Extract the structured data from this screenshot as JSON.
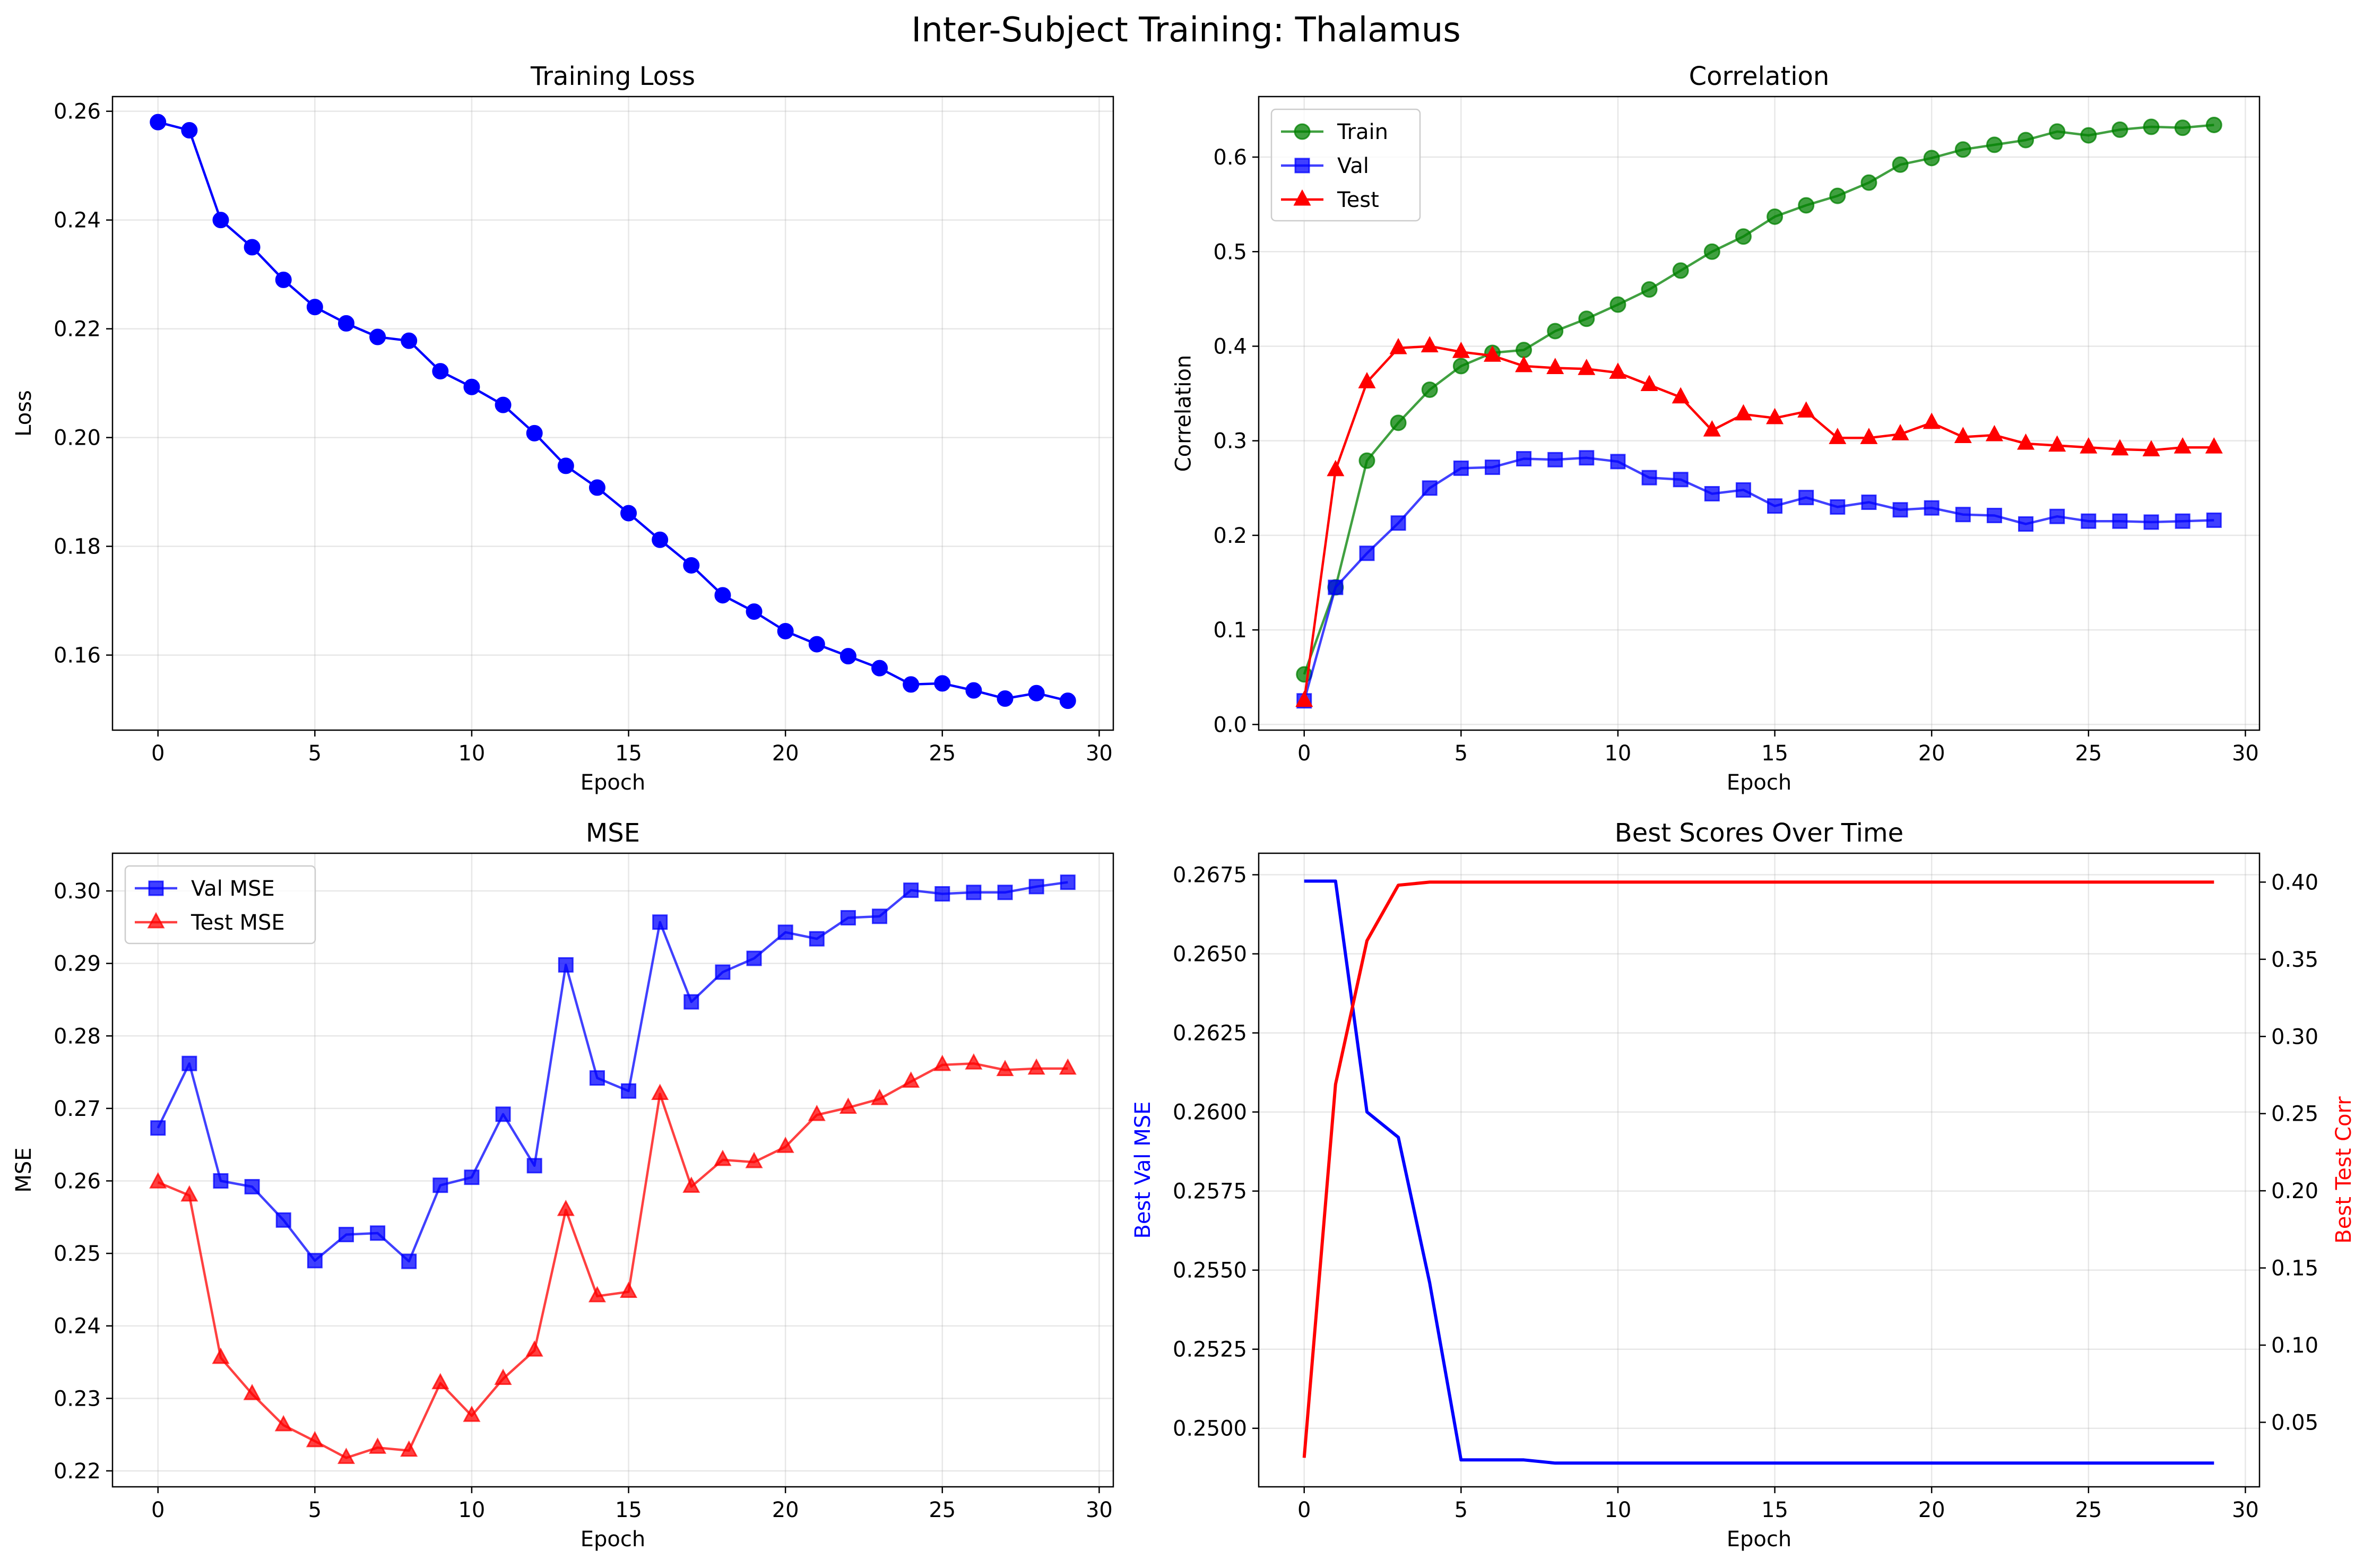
{
  "figure": {
    "suptitle": "Inter-Subject Training: Thalamus"
  },
  "chart_data": [
    {
      "id": "loss",
      "type": "line",
      "title": "Training Loss",
      "xlabel": "Epoch",
      "ylabel": "Loss",
      "xlim": [
        -1.45,
        30.45
      ],
      "ylim": [
        0.1462,
        0.2627
      ],
      "xticks": [
        0,
        5,
        10,
        15,
        20,
        25,
        30
      ],
      "yticks": [
        0.16,
        0.18,
        0.2,
        0.22,
        0.24,
        0.26
      ],
      "ytick_labels": [
        "0.16",
        "0.18",
        "0.20",
        "0.22",
        "0.24",
        "0.26"
      ],
      "grid": true,
      "x": [
        0,
        1,
        2,
        3,
        4,
        5,
        6,
        7,
        8,
        9,
        10,
        11,
        12,
        13,
        14,
        15,
        16,
        17,
        18,
        19,
        20,
        21,
        22,
        23,
        24,
        25,
        26,
        27,
        28,
        29
      ],
      "series": [
        {
          "name": "",
          "color": "#0000ff",
          "marker": "circle",
          "alpha": 1.0,
          "values": [
            0.258,
            0.2565,
            0.24,
            0.235,
            0.229,
            0.224,
            0.221,
            0.2185,
            0.2178,
            0.2122,
            0.2093,
            0.206,
            0.2008,
            0.1948,
            0.1908,
            0.1861,
            0.1812,
            0.1765,
            0.171,
            0.168,
            0.1644,
            0.162,
            0.1598,
            0.1576,
            0.1546,
            0.1548,
            0.1535,
            0.152,
            0.153,
            0.1516
          ]
        }
      ],
      "legend": null
    },
    {
      "id": "corr",
      "type": "line",
      "title": "Correlation",
      "xlabel": "Epoch",
      "ylabel": "Correlation",
      "xlim": [
        -1.45,
        30.45
      ],
      "ylim": [
        -0.006,
        0.664
      ],
      "xticks": [
        0,
        5,
        10,
        15,
        20,
        25,
        30
      ],
      "yticks": [
        0.0,
        0.1,
        0.2,
        0.3,
        0.4,
        0.5,
        0.6
      ],
      "ytick_labels": [
        "0.0",
        "0.1",
        "0.2",
        "0.3",
        "0.4",
        "0.5",
        "0.6"
      ],
      "grid": true,
      "x": [
        0,
        1,
        2,
        3,
        4,
        5,
        6,
        7,
        8,
        9,
        10,
        11,
        12,
        13,
        14,
        15,
        16,
        17,
        18,
        19,
        20,
        21,
        22,
        23,
        24,
        25,
        26,
        27,
        28,
        29
      ],
      "legend": "top-left",
      "series": [
        {
          "name": "Train",
          "color": "#008000",
          "marker": "circle",
          "alpha": 0.75,
          "values": [
            0.053,
            0.145,
            0.279,
            0.319,
            0.354,
            0.379,
            0.393,
            0.396,
            0.416,
            0.429,
            0.444,
            0.46,
            0.48,
            0.5,
            0.516,
            0.537,
            0.549,
            0.559,
            0.573,
            0.592,
            0.599,
            0.608,
            0.613,
            0.618,
            0.627,
            0.623,
            0.629,
            0.632,
            0.631,
            0.634
          ]
        },
        {
          "name": "Val",
          "color": "#0000ff",
          "marker": "square",
          "alpha": 0.75,
          "values": [
            0.025,
            0.145,
            0.181,
            0.213,
            0.25,
            0.271,
            0.272,
            0.281,
            0.28,
            0.282,
            0.278,
            0.261,
            0.259,
            0.244,
            0.248,
            0.231,
            0.24,
            0.23,
            0.235,
            0.227,
            0.229,
            0.222,
            0.221,
            0.212,
            0.22,
            0.215,
            0.215,
            0.214,
            0.215,
            0.216
          ]
        },
        {
          "name": "Test",
          "color": "#ff0000",
          "marker": "triangle",
          "alpha": 1.0,
          "values": [
            0.025,
            0.269,
            0.362,
            0.398,
            0.4,
            0.394,
            0.39,
            0.379,
            0.377,
            0.376,
            0.372,
            0.359,
            0.346,
            0.311,
            0.328,
            0.324,
            0.331,
            0.303,
            0.303,
            0.307,
            0.319,
            0.304,
            0.306,
            0.297,
            0.295,
            0.293,
            0.291,
            0.29,
            0.293,
            0.293
          ]
        }
      ]
    },
    {
      "id": "mse",
      "type": "line",
      "title": "MSE",
      "xlabel": "Epoch",
      "ylabel": "MSE",
      "xlim": [
        -1.45,
        30.45
      ],
      "ylim": [
        0.2178,
        0.3052
      ],
      "xticks": [
        0,
        5,
        10,
        15,
        20,
        25,
        30
      ],
      "yticks": [
        0.22,
        0.23,
        0.24,
        0.25,
        0.26,
        0.27,
        0.28,
        0.29,
        0.3
      ],
      "ytick_labels": [
        "0.22",
        "0.23",
        "0.24",
        "0.25",
        "0.26",
        "0.27",
        "0.28",
        "0.29",
        "0.30"
      ],
      "grid": true,
      "x": [
        0,
        1,
        2,
        3,
        4,
        5,
        6,
        7,
        8,
        9,
        10,
        11,
        12,
        13,
        14,
        15,
        16,
        17,
        18,
        19,
        20,
        21,
        22,
        23,
        24,
        25,
        26,
        27,
        28,
        29
      ],
      "legend": "top-left",
      "series": [
        {
          "name": "Val MSE",
          "color": "#0000ff",
          "marker": "square",
          "alpha": 0.75,
          "values": [
            0.2673,
            0.2762,
            0.26,
            0.2592,
            0.2546,
            0.249,
            0.2526,
            0.2528,
            0.2489,
            0.2594,
            0.2605,
            0.2692,
            0.2621,
            0.2898,
            0.2742,
            0.2724,
            0.2957,
            0.2847,
            0.2888,
            0.2907,
            0.2943,
            0.2934,
            0.2963,
            0.2965,
            0.3001,
            0.2996,
            0.2998,
            0.2998,
            0.3006,
            0.3012
          ]
        },
        {
          "name": "Test MSE",
          "color": "#ff0000",
          "marker": "triangle",
          "alpha": 0.75,
          "values": [
            0.2598,
            0.258,
            0.2356,
            0.2306,
            0.2263,
            0.2241,
            0.2218,
            0.2232,
            0.2228,
            0.2321,
            0.2276,
            0.2327,
            0.2366,
            0.256,
            0.2441,
            0.2447,
            0.272,
            0.2592,
            0.2629,
            0.2626,
            0.2647,
            0.2691,
            0.2701,
            0.2713,
            0.2737,
            0.276,
            0.2762,
            0.2753,
            0.2755,
            0.2755
          ]
        }
      ]
    },
    {
      "id": "best",
      "type": "line",
      "title": "Best Scores Over Time",
      "xlabel": "Epoch",
      "ylabel": "Best Val MSE",
      "ylabel_right": "Best Test Corr",
      "ylabel_color": "#0000ff",
      "ylabel_right_color": "#ff0000",
      "xlim": [
        -1.45,
        30.45
      ],
      "ylim": [
        0.24815,
        0.26818
      ],
      "ylim_right": [
        0.0082,
        0.4187
      ],
      "xticks": [
        0,
        5,
        10,
        15,
        20,
        25,
        30
      ],
      "yticks": [
        0.25,
        0.2525,
        0.255,
        0.2575,
        0.26,
        0.2625,
        0.265,
        0.2675
      ],
      "ytick_labels": [
        "0.2500",
        "0.2525",
        "0.2550",
        "0.2575",
        "0.2600",
        "0.2625",
        "0.2650",
        "0.2675"
      ],
      "yticks_right": [
        0.05,
        0.1,
        0.15,
        0.2,
        0.25,
        0.3,
        0.35,
        0.4
      ],
      "ytick_labels_right": [
        "0.05",
        "0.10",
        "0.15",
        "0.20",
        "0.25",
        "0.30",
        "0.35",
        "0.40"
      ],
      "grid": true,
      "x": [
        0,
        1,
        2,
        3,
        4,
        5,
        6,
        7,
        8,
        9,
        10,
        11,
        12,
        13,
        14,
        15,
        16,
        17,
        18,
        19,
        20,
        21,
        22,
        23,
        24,
        25,
        26,
        27,
        28,
        29
      ],
      "legend": null,
      "series": [
        {
          "name": "",
          "axis": "left",
          "color": "#0000ff",
          "marker": "none",
          "alpha": 1.0,
          "values": [
            0.2673,
            0.2673,
            0.26,
            0.2592,
            0.2546,
            0.249,
            0.249,
            0.249,
            0.2489,
            0.2489,
            0.2489,
            0.2489,
            0.2489,
            0.2489,
            0.2489,
            0.2489,
            0.2489,
            0.2489,
            0.2489,
            0.2489,
            0.2489,
            0.2489,
            0.2489,
            0.2489,
            0.2489,
            0.2489,
            0.2489,
            0.2489,
            0.2489,
            0.2489
          ]
        },
        {
          "name": "",
          "axis": "right",
          "color": "#ff0000",
          "marker": "none",
          "alpha": 1.0,
          "values": [
            0.027,
            0.269,
            0.362,
            0.398,
            0.4,
            0.4,
            0.4,
            0.4,
            0.4,
            0.4,
            0.4,
            0.4,
            0.4,
            0.4,
            0.4,
            0.4,
            0.4,
            0.4,
            0.4,
            0.4,
            0.4,
            0.4,
            0.4,
            0.4,
            0.4,
            0.4,
            0.4,
            0.4,
            0.4,
            0.4
          ]
        }
      ]
    }
  ]
}
